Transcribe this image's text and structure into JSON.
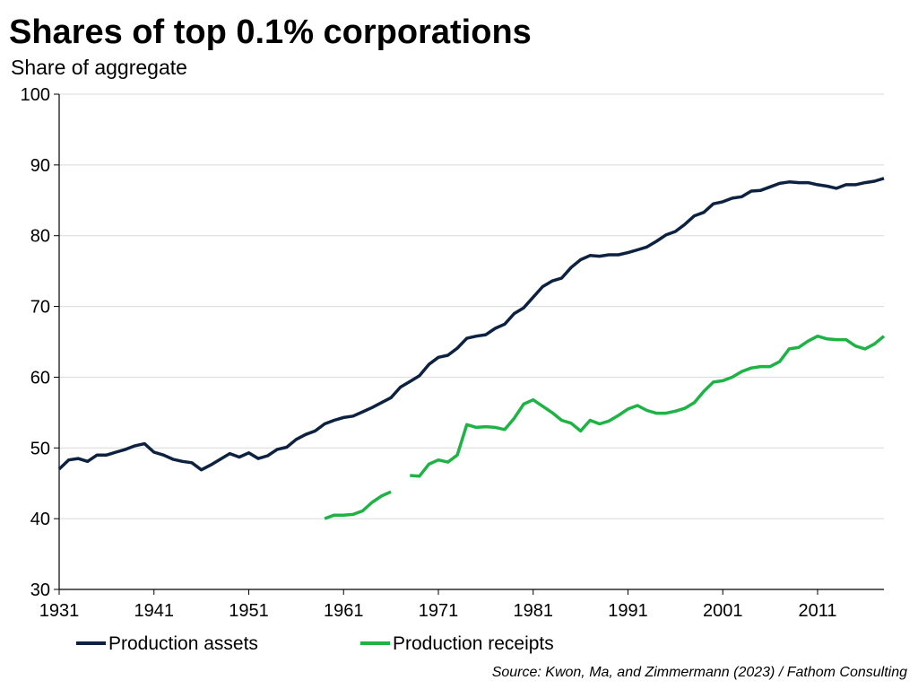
{
  "chart_data": {
    "type": "line",
    "title": "Shares of top 0.1% corporations",
    "subtitle": "Share of aggregate",
    "xlabel": "",
    "ylabel": "",
    "source": "Source: Kwon, Ma, and Zimmermann (2023) / Fathom Consulting",
    "xlim": [
      1931,
      2018
    ],
    "ylim": [
      30,
      100
    ],
    "y_ticks": [
      "30",
      "40",
      "50",
      "60",
      "70",
      "80",
      "90",
      "100"
    ],
    "x_ticks": [
      "1931",
      "1941",
      "1951",
      "1961",
      "1971",
      "1981",
      "1991",
      "2001",
      "2011"
    ],
    "grid": "horizontal",
    "legend_position": "bottom",
    "x": [
      1931,
      1932,
      1933,
      1934,
      1935,
      1936,
      1937,
      1938,
      1939,
      1940,
      1941,
      1942,
      1943,
      1944,
      1945,
      1946,
      1947,
      1948,
      1949,
      1950,
      1951,
      1952,
      1953,
      1954,
      1955,
      1956,
      1957,
      1958,
      1959,
      1960,
      1961,
      1962,
      1963,
      1964,
      1965,
      1966,
      1967,
      1968,
      1969,
      1970,
      1971,
      1972,
      1973,
      1974,
      1975,
      1976,
      1977,
      1978,
      1979,
      1980,
      1981,
      1982,
      1983,
      1984,
      1985,
      1986,
      1987,
      1988,
      1989,
      1990,
      1991,
      1992,
      1993,
      1994,
      1995,
      1996,
      1997,
      1998,
      1999,
      2000,
      2001,
      2002,
      2003,
      2004,
      2005,
      2006,
      2007,
      2008,
      2009,
      2010,
      2011,
      2012,
      2013,
      2014,
      2015,
      2016,
      2017,
      2018
    ],
    "series": [
      {
        "name": "Production assets",
        "color": "#0d2240",
        "values": [
          47.0,
          48.3,
          48.5,
          48.1,
          49.0,
          49.0,
          49.4,
          49.8,
          50.3,
          50.6,
          49.4,
          49.0,
          48.4,
          48.1,
          47.9,
          46.9,
          47.6,
          48.4,
          49.2,
          48.7,
          49.3,
          48.5,
          48.9,
          49.8,
          50.1,
          51.2,
          51.9,
          52.4,
          53.4,
          53.9,
          54.3,
          54.5,
          55.1,
          55.7,
          56.4,
          57.1,
          58.6,
          59.4,
          60.2,
          61.8,
          62.8,
          63.1,
          64.1,
          65.5,
          65.8,
          66.0,
          66.9,
          67.5,
          69.0,
          69.8,
          71.3,
          72.8,
          73.6,
          74.0,
          75.5,
          76.6,
          77.2,
          77.1,
          77.3,
          77.3,
          77.6,
          78.0,
          78.4,
          79.2,
          80.1,
          80.6,
          81.6,
          82.8,
          83.3,
          84.5,
          84.8,
          85.3,
          85.5,
          86.3,
          86.4,
          86.9,
          87.4,
          87.6,
          87.5,
          87.5,
          87.2,
          87.0,
          86.7,
          87.2,
          87.2,
          87.5,
          87.7,
          88.1
        ]
      },
      {
        "name": "Production receipts",
        "color": "#1db345",
        "values": [
          null,
          null,
          null,
          null,
          null,
          null,
          null,
          null,
          null,
          null,
          null,
          null,
          null,
          null,
          null,
          null,
          null,
          null,
          null,
          null,
          null,
          null,
          null,
          null,
          null,
          null,
          null,
          null,
          40.0,
          40.5,
          40.5,
          40.6,
          41.1,
          42.3,
          43.2,
          43.8,
          null,
          46.1,
          46.0,
          47.7,
          48.3,
          48.0,
          49.0,
          53.3,
          52.9,
          53.0,
          52.9,
          52.6,
          54.2,
          56.2,
          56.8,
          55.9,
          55.0,
          53.9,
          53.5,
          52.4,
          53.9,
          53.4,
          53.8,
          54.6,
          55.5,
          56.0,
          55.3,
          54.9,
          54.9,
          55.2,
          55.6,
          56.4,
          58.0,
          59.3,
          59.5,
          60.0,
          60.8,
          61.3,
          61.5,
          61.5,
          62.2,
          64.0,
          64.2,
          65.1,
          65.8,
          65.4,
          65.3,
          65.3,
          64.4,
          64.0,
          64.7,
          65.8
        ]
      }
    ]
  }
}
